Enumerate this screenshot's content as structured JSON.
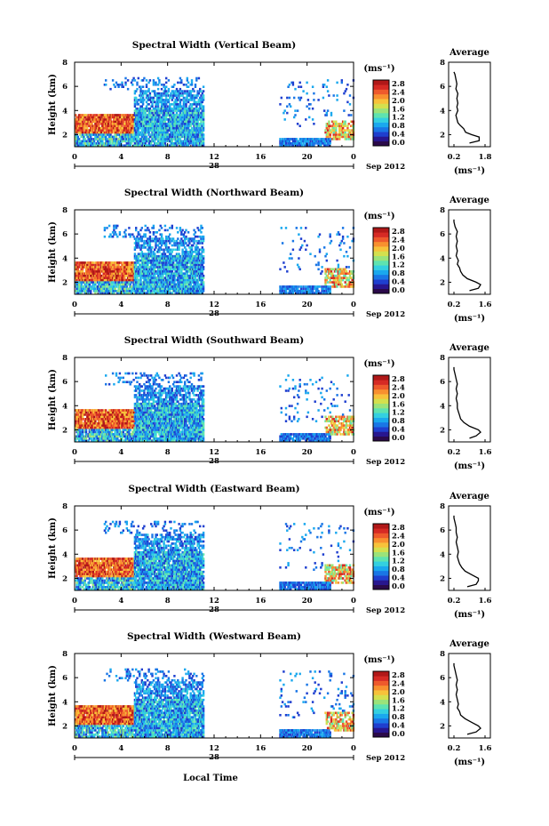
{
  "colorbar": {
    "unit": "(ms⁻¹)",
    "ticks": [
      "2.8",
      "2.4",
      "2.0",
      "1.6",
      "1.2",
      "0.8",
      "0.4",
      "0.0"
    ],
    "colors": [
      "#2b0a4a",
      "#28168f",
      "#1f3fcf",
      "#1976e6",
      "#1aa8ee",
      "#33d0e0",
      "#5ee3b0",
      "#9be37a",
      "#d4e04e",
      "#f7c23a",
      "#f8902f",
      "#ee5a2c",
      "#d62a24",
      "#b01818"
    ]
  },
  "xaxis": {
    "ticks": [
      "0",
      "4",
      "8",
      "12",
      "16",
      "20",
      "0"
    ],
    "date_label": "28",
    "month_label": "Sep 2012",
    "label": "Local Time"
  },
  "yaxis": {
    "label": "Height (km)",
    "ticks": [
      "2",
      "4",
      "6",
      "8"
    ]
  },
  "average": {
    "title": "Average",
    "yticks": [
      "2",
      "4",
      "6",
      "8"
    ],
    "unit": "(ms⁻¹)"
  },
  "chart_data": [
    {
      "type": "heatmap",
      "title": "Spectral Width (Vertical Beam)",
      "xlim": [
        0,
        24
      ],
      "ylim": [
        1,
        8
      ],
      "zlim": [
        0,
        2.8
      ],
      "avg_xticks": [
        "0.2",
        "1.8"
      ],
      "average_profile": {
        "heights": [
          1.3,
          1.5,
          1.8,
          2.0,
          2.2,
          2.5,
          2.8,
          3.0,
          3.3,
          3.6,
          4.0,
          4.3,
          4.6,
          5.0,
          5.4,
          5.8,
          6.2,
          6.6,
          7.0,
          7.2
        ],
        "values": [
          1.0,
          1.5,
          1.5,
          1.1,
          0.8,
          0.7,
          0.5,
          0.4,
          0.35,
          0.3,
          0.4,
          0.35,
          0.4,
          0.35,
          0.4,
          0.3,
          0.35,
          0.3,
          0.25,
          0.2
        ]
      }
    },
    {
      "type": "heatmap",
      "title": "Spectral Width (Northward Beam)",
      "xlim": [
        0,
        24
      ],
      "ylim": [
        1,
        8
      ],
      "zlim": [
        0,
        2.8
      ],
      "avg_xticks": [
        "0.2",
        "1.6"
      ],
      "average_profile": {
        "heights": [
          1.3,
          1.5,
          1.8,
          2.0,
          2.3,
          2.6,
          2.9,
          3.2,
          3.5,
          3.8,
          4.2,
          4.6,
          5.0,
          5.4,
          5.8,
          6.2,
          6.6,
          7.0,
          7.2
        ],
        "values": [
          0.9,
          1.3,
          1.4,
          1.2,
          0.8,
          0.6,
          0.5,
          0.45,
          0.35,
          0.4,
          0.3,
          0.35,
          0.3,
          0.35,
          0.3,
          0.35,
          0.25,
          0.2,
          0.2
        ]
      }
    },
    {
      "type": "heatmap",
      "title": "Spectral Width (Southward Beam)",
      "xlim": [
        0,
        24
      ],
      "ylim": [
        1,
        8
      ],
      "zlim": [
        0,
        2.8
      ],
      "avg_xticks": [
        "0.2",
        "1.6"
      ],
      "average_profile": {
        "heights": [
          1.3,
          1.5,
          1.8,
          2.0,
          2.3,
          2.6,
          2.9,
          3.2,
          3.5,
          3.8,
          4.2,
          4.6,
          5.0,
          5.4,
          5.8,
          6.2,
          6.6,
          7.0,
          7.2
        ],
        "values": [
          0.9,
          1.2,
          1.4,
          1.3,
          0.9,
          0.65,
          0.5,
          0.45,
          0.4,
          0.35,
          0.35,
          0.3,
          0.35,
          0.3,
          0.35,
          0.3,
          0.25,
          0.2,
          0.2
        ]
      }
    },
    {
      "type": "heatmap",
      "title": "Spectral Width (Eastward Beam)",
      "xlim": [
        0,
        24
      ],
      "ylim": [
        1,
        8
      ],
      "zlim": [
        0,
        2.8
      ],
      "avg_xticks": [
        "0.2",
        "1.6"
      ],
      "average_profile": {
        "heights": [
          1.3,
          1.5,
          1.8,
          2.0,
          2.3,
          2.6,
          2.9,
          3.2,
          3.5,
          3.8,
          4.2,
          4.6,
          5.0,
          5.4,
          5.8,
          6.2,
          6.6,
          7.0,
          7.2
        ],
        "values": [
          0.8,
          1.2,
          1.3,
          1.3,
          1.0,
          0.7,
          0.55,
          0.45,
          0.4,
          0.35,
          0.4,
          0.35,
          0.3,
          0.35,
          0.3,
          0.3,
          0.25,
          0.2,
          0.2
        ]
      }
    },
    {
      "type": "heatmap",
      "title": "Spectral Width (Westward Beam)",
      "xlim": [
        0,
        24
      ],
      "ylim": [
        1,
        8
      ],
      "zlim": [
        0,
        2.8
      ],
      "avg_xticks": [
        "0.2",
        "1.6"
      ],
      "average_profile": {
        "heights": [
          1.3,
          1.5,
          1.8,
          2.0,
          2.3,
          2.6,
          2.9,
          3.2,
          3.5,
          3.8,
          4.2,
          4.6,
          5.0,
          5.4,
          5.8,
          6.2,
          6.6,
          7.0,
          7.2
        ],
        "values": [
          0.8,
          1.2,
          1.4,
          1.3,
          1.0,
          0.7,
          0.5,
          0.45,
          0.35,
          0.4,
          0.35,
          0.3,
          0.35,
          0.3,
          0.35,
          0.3,
          0.25,
          0.2,
          0.2
        ]
      }
    }
  ]
}
